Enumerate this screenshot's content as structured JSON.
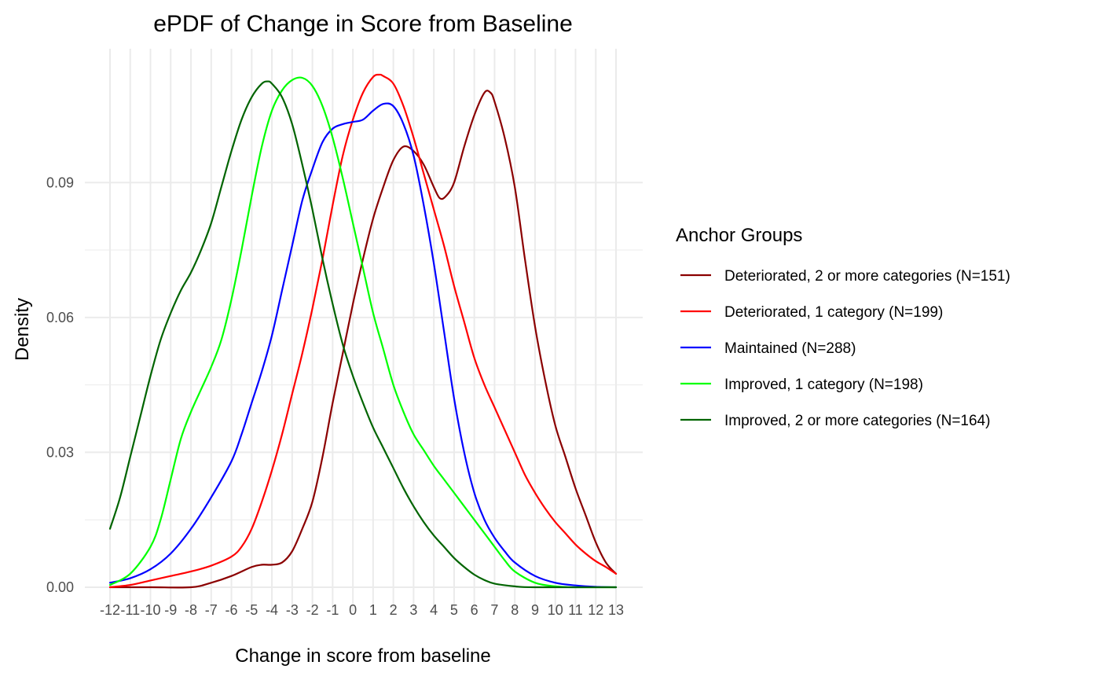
{
  "chart_data": {
    "type": "line",
    "title": "ePDF of Change in Score from Baseline",
    "xlabel": "Change in score from baseline",
    "ylabel": "Density",
    "xlim": [
      -12,
      13
    ],
    "ylim": [
      0,
      0.114
    ],
    "x_ticks": [
      -12,
      -11,
      -10,
      -9,
      -8,
      -7,
      -6,
      -5,
      -4,
      -3,
      -2,
      -1,
      0,
      1,
      2,
      3,
      4,
      5,
      6,
      7,
      8,
      9,
      10,
      11,
      12,
      13
    ],
    "y_ticks": [
      0.0,
      0.03,
      0.06,
      0.09
    ],
    "y_tick_labels": [
      "0.00",
      "0.03",
      "0.06",
      "0.09"
    ],
    "grid": true,
    "legend": {
      "title": "Anchor Groups",
      "placement": "right"
    },
    "series": [
      {
        "name": "Deteriorated, 2 or more categories (N=151)",
        "color": "#8b0000",
        "points": [
          [
            -12,
            0
          ],
          [
            -10,
            0
          ],
          [
            -8,
            0
          ],
          [
            -7,
            0.001
          ],
          [
            -6,
            0.0025
          ],
          [
            -5,
            0.0045
          ],
          [
            -4.5,
            0.005
          ],
          [
            -4,
            0.005
          ],
          [
            -3.5,
            0.0055
          ],
          [
            -3,
            0.008
          ],
          [
            -2.5,
            0.013
          ],
          [
            -2,
            0.019
          ],
          [
            -1.5,
            0.029
          ],
          [
            -1,
            0.041
          ],
          [
            -0.5,
            0.052
          ],
          [
            0,
            0.063
          ],
          [
            0.5,
            0.073
          ],
          [
            1,
            0.082
          ],
          [
            1.5,
            0.089
          ],
          [
            2,
            0.095
          ],
          [
            2.5,
            0.098
          ],
          [
            3,
            0.097
          ],
          [
            3.5,
            0.094
          ],
          [
            4,
            0.089
          ],
          [
            4.3,
            0.0865
          ],
          [
            4.6,
            0.087
          ],
          [
            5,
            0.09
          ],
          [
            5.5,
            0.098
          ],
          [
            6,
            0.105
          ],
          [
            6.5,
            0.11
          ],
          [
            6.8,
            0.11
          ],
          [
            7,
            0.108
          ],
          [
            7.5,
            0.1
          ],
          [
            8,
            0.089
          ],
          [
            8.5,
            0.073
          ],
          [
            9,
            0.058
          ],
          [
            9.5,
            0.046
          ],
          [
            10,
            0.036
          ],
          [
            10.5,
            0.029
          ],
          [
            11,
            0.022
          ],
          [
            11.5,
            0.016
          ],
          [
            12,
            0.01
          ],
          [
            12.5,
            0.0055
          ],
          [
            13,
            0.003
          ]
        ]
      },
      {
        "name": "Deteriorated, 1 category (N=199)",
        "color": "#ff0000",
        "points": [
          [
            -12,
            0
          ],
          [
            -11,
            0.0005
          ],
          [
            -10,
            0.0015
          ],
          [
            -9,
            0.0025
          ],
          [
            -8,
            0.0035
          ],
          [
            -7,
            0.0048
          ],
          [
            -6,
            0.0068
          ],
          [
            -5.5,
            0.009
          ],
          [
            -5,
            0.013
          ],
          [
            -4.5,
            0.019
          ],
          [
            -4,
            0.026
          ],
          [
            -3.5,
            0.034
          ],
          [
            -3,
            0.043
          ],
          [
            -2.5,
            0.052
          ],
          [
            -2,
            0.062
          ],
          [
            -1.5,
            0.073
          ],
          [
            -1,
            0.085
          ],
          [
            -0.5,
            0.096
          ],
          [
            0,
            0.104
          ],
          [
            0.5,
            0.11
          ],
          [
            1,
            0.1135
          ],
          [
            1.3,
            0.114
          ],
          [
            1.5,
            0.1137
          ],
          [
            2,
            0.112
          ],
          [
            2.5,
            0.107
          ],
          [
            3,
            0.1
          ],
          [
            3.5,
            0.092
          ],
          [
            4,
            0.084
          ],
          [
            4.5,
            0.076
          ],
          [
            5,
            0.067
          ],
          [
            5.5,
            0.059
          ],
          [
            6,
            0.051
          ],
          [
            6.5,
            0.045
          ],
          [
            7,
            0.04
          ],
          [
            7.5,
            0.035
          ],
          [
            8,
            0.03
          ],
          [
            8.5,
            0.025
          ],
          [
            9,
            0.021
          ],
          [
            9.5,
            0.0175
          ],
          [
            10,
            0.0145
          ],
          [
            10.5,
            0.012
          ],
          [
            11,
            0.0095
          ],
          [
            11.5,
            0.0075
          ],
          [
            12,
            0.0058
          ],
          [
            12.5,
            0.0045
          ],
          [
            13,
            0.003
          ]
        ]
      },
      {
        "name": "Maintained (N=288)",
        "color": "#0000ff",
        "points": [
          [
            -12,
            0.001
          ],
          [
            -11,
            0.002
          ],
          [
            -10,
            0.004
          ],
          [
            -9,
            0.0075
          ],
          [
            -8,
            0.013
          ],
          [
            -7,
            0.02
          ],
          [
            -6,
            0.028
          ],
          [
            -5.5,
            0.034
          ],
          [
            -5,
            0.041
          ],
          [
            -4.5,
            0.048
          ],
          [
            -4,
            0.056
          ],
          [
            -3.5,
            0.066
          ],
          [
            -3,
            0.076
          ],
          [
            -2.5,
            0.086
          ],
          [
            -2,
            0.093
          ],
          [
            -1.5,
            0.099
          ],
          [
            -1,
            0.102
          ],
          [
            -0.5,
            0.103
          ],
          [
            0,
            0.1035
          ],
          [
            0.5,
            0.104
          ],
          [
            1,
            0.106
          ],
          [
            1.5,
            0.1075
          ],
          [
            2,
            0.107
          ],
          [
            2.5,
            0.103
          ],
          [
            3,
            0.096
          ],
          [
            3.5,
            0.085
          ],
          [
            4,
            0.072
          ],
          [
            4.5,
            0.057
          ],
          [
            5,
            0.042
          ],
          [
            5.5,
            0.03
          ],
          [
            6,
            0.021
          ],
          [
            6.5,
            0.015
          ],
          [
            7,
            0.011
          ],
          [
            7.5,
            0.008
          ],
          [
            8,
            0.0055
          ],
          [
            9,
            0.0025
          ],
          [
            10,
            0.001
          ],
          [
            11,
            0.0004
          ],
          [
            12,
            0.0001
          ],
          [
            13,
            0
          ]
        ]
      },
      {
        "name": "Improved, 1 category (N=198)",
        "color": "#00ff00",
        "points": [
          [
            -12,
            0.0005
          ],
          [
            -11,
            0.003
          ],
          [
            -10,
            0.009
          ],
          [
            -9.5,
            0.015
          ],
          [
            -9,
            0.024
          ],
          [
            -8.5,
            0.033
          ],
          [
            -8,
            0.039
          ],
          [
            -7.5,
            0.044
          ],
          [
            -7,
            0.049
          ],
          [
            -6.5,
            0.055
          ],
          [
            -6,
            0.064
          ],
          [
            -5.5,
            0.075
          ],
          [
            -5,
            0.087
          ],
          [
            -4.5,
            0.098
          ],
          [
            -4,
            0.106
          ],
          [
            -3.5,
            0.1105
          ],
          [
            -3,
            0.1128
          ],
          [
            -2.5,
            0.1133
          ],
          [
            -2,
            0.1115
          ],
          [
            -1.5,
            0.107
          ],
          [
            -1,
            0.1
          ],
          [
            -0.5,
            0.091
          ],
          [
            0,
            0.081
          ],
          [
            0.5,
            0.071
          ],
          [
            1,
            0.061
          ],
          [
            1.5,
            0.053
          ],
          [
            2,
            0.045
          ],
          [
            2.5,
            0.039
          ],
          [
            3,
            0.034
          ],
          [
            3.5,
            0.0305
          ],
          [
            4,
            0.027
          ],
          [
            4.5,
            0.024
          ],
          [
            5,
            0.021
          ],
          [
            5.5,
            0.018
          ],
          [
            6,
            0.015
          ],
          [
            6.5,
            0.012
          ],
          [
            7,
            0.009
          ],
          [
            7.5,
            0.006
          ],
          [
            8,
            0.0035
          ],
          [
            9,
            0.001
          ],
          [
            10,
            0.0002
          ],
          [
            11,
            0
          ],
          [
            13,
            0
          ]
        ]
      },
      {
        "name": "Improved, 2 or more categories (N=164)",
        "color": "#006400",
        "points": [
          [
            -12,
            0.013
          ],
          [
            -11.5,
            0.02
          ],
          [
            -11,
            0.029
          ],
          [
            -10.5,
            0.038
          ],
          [
            -10,
            0.047
          ],
          [
            -9.5,
            0.055
          ],
          [
            -9,
            0.061
          ],
          [
            -8.5,
            0.066
          ],
          [
            -8,
            0.07
          ],
          [
            -7.5,
            0.075
          ],
          [
            -7,
            0.081
          ],
          [
            -6.5,
            0.089
          ],
          [
            -6,
            0.097
          ],
          [
            -5.5,
            0.104
          ],
          [
            -5,
            0.109
          ],
          [
            -4.5,
            0.112
          ],
          [
            -4.2,
            0.1125
          ],
          [
            -4,
            0.112
          ],
          [
            -3.5,
            0.109
          ],
          [
            -3,
            0.103
          ],
          [
            -2.5,
            0.094
          ],
          [
            -2,
            0.084
          ],
          [
            -1.5,
            0.073
          ],
          [
            -1,
            0.063
          ],
          [
            -0.5,
            0.054
          ],
          [
            0,
            0.047
          ],
          [
            0.5,
            0.041
          ],
          [
            1,
            0.0355
          ],
          [
            1.5,
            0.031
          ],
          [
            2,
            0.0265
          ],
          [
            2.5,
            0.022
          ],
          [
            3,
            0.018
          ],
          [
            3.5,
            0.0145
          ],
          [
            4,
            0.0115
          ],
          [
            4.5,
            0.009
          ],
          [
            5,
            0.0065
          ],
          [
            5.5,
            0.0045
          ],
          [
            6,
            0.0028
          ],
          [
            6.5,
            0.0016
          ],
          [
            7,
            0.0008
          ],
          [
            8,
            0.0002
          ],
          [
            9,
            0
          ],
          [
            13,
            0
          ]
        ]
      }
    ]
  }
}
